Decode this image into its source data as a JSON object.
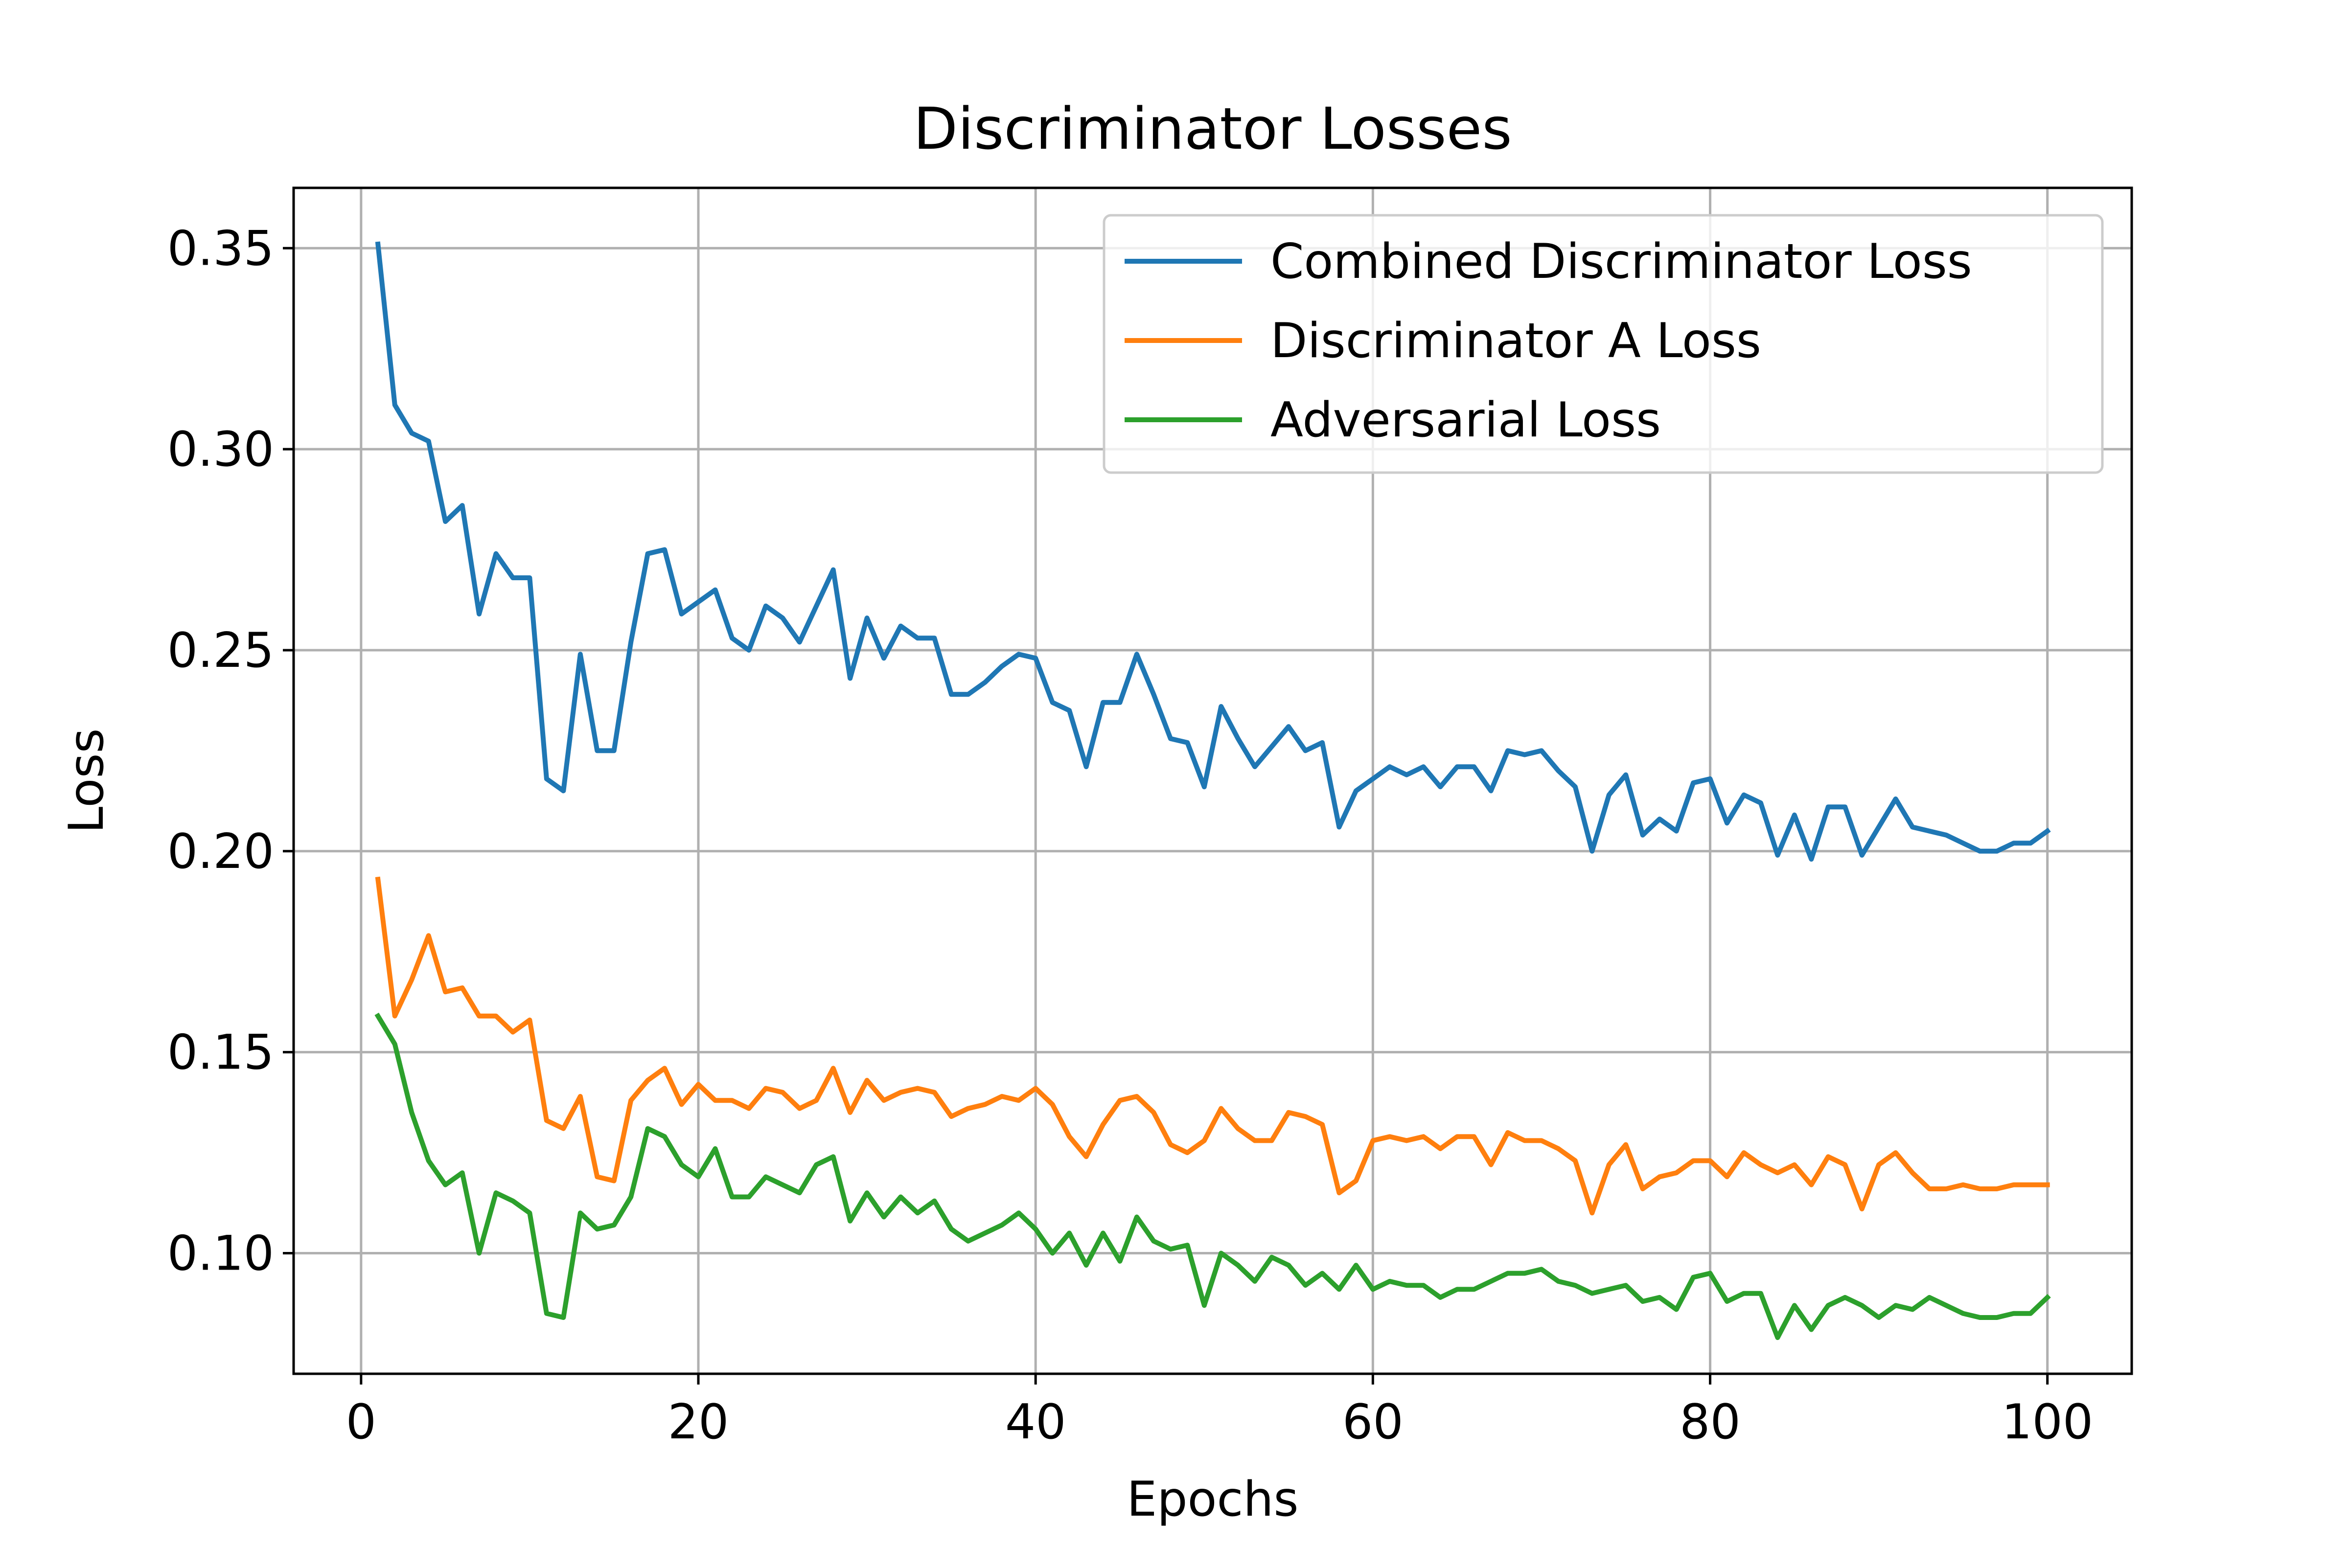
{
  "chart_data": {
    "type": "line",
    "title": "Discriminator Losses",
    "xlabel": "Epochs",
    "ylabel": "Loss",
    "xlim": [
      -4,
      105
    ],
    "ylim": [
      0.07,
      0.365
    ],
    "xticks": [
      0,
      20,
      40,
      60,
      80,
      100
    ],
    "xtick_labels": [
      "0",
      "20",
      "40",
      "60",
      "80",
      "100"
    ],
    "yticks": [
      0.1,
      0.15,
      0.2,
      0.25,
      0.3,
      0.35
    ],
    "ytick_labels": [
      "0.10",
      "0.15",
      "0.20",
      "0.25",
      "0.30",
      "0.35"
    ],
    "grid": true,
    "legend_position": "top-right",
    "x": [
      1,
      2,
      3,
      4,
      5,
      6,
      7,
      8,
      9,
      10,
      11,
      12,
      13,
      14,
      15,
      16,
      17,
      18,
      19,
      20,
      21,
      22,
      23,
      24,
      25,
      26,
      27,
      28,
      29,
      30,
      31,
      32,
      33,
      34,
      35,
      36,
      37,
      38,
      39,
      40,
      41,
      42,
      43,
      44,
      45,
      46,
      47,
      48,
      49,
      50,
      51,
      52,
      53,
      54,
      55,
      56,
      57,
      58,
      59,
      60,
      61,
      62,
      63,
      64,
      65,
      66,
      67,
      68,
      69,
      70,
      71,
      72,
      73,
      74,
      75,
      76,
      77,
      78,
      79,
      80,
      81,
      82,
      83,
      84,
      85,
      86,
      87,
      88,
      89,
      90,
      91,
      92,
      93,
      94,
      95,
      96,
      97,
      98,
      99,
      100
    ],
    "series": [
      {
        "name": "Combined Discriminator Loss",
        "color": "#1f77b4",
        "values": [
          0.351,
          0.311,
          0.304,
          0.302,
          0.282,
          0.286,
          0.259,
          0.274,
          0.268,
          0.268,
          0.218,
          0.215,
          0.249,
          0.225,
          0.225,
          0.252,
          0.274,
          0.275,
          0.259,
          0.262,
          0.265,
          0.253,
          0.25,
          0.261,
          0.258,
          0.252,
          0.261,
          0.27,
          0.243,
          0.258,
          0.248,
          0.256,
          0.253,
          0.253,
          0.239,
          0.239,
          0.242,
          0.246,
          0.249,
          0.248,
          0.237,
          0.235,
          0.221,
          0.237,
          0.237,
          0.249,
          0.239,
          0.228,
          0.227,
          0.216,
          0.236,
          0.228,
          0.221,
          0.226,
          0.231,
          0.225,
          0.227,
          0.206,
          0.215,
          0.218,
          0.221,
          0.219,
          0.221,
          0.216,
          0.221,
          0.221,
          0.215,
          0.225,
          0.224,
          0.225,
          0.22,
          0.216,
          0.2,
          0.214,
          0.219,
          0.204,
          0.208,
          0.205,
          0.217,
          0.218,
          0.207,
          0.214,
          0.212,
          0.199,
          0.209,
          0.198,
          0.211,
          0.211,
          0.199,
          0.206,
          0.213,
          0.206,
          0.205,
          0.204,
          0.202,
          0.2,
          0.2,
          0.202,
          0.202,
          0.205
        ]
      },
      {
        "name": "Discriminator A Loss",
        "color": "#ff7f0e",
        "values": [
          0.193,
          0.159,
          0.168,
          0.179,
          0.165,
          0.166,
          0.159,
          0.159,
          0.155,
          0.158,
          0.133,
          0.131,
          0.139,
          0.119,
          0.118,
          0.138,
          0.143,
          0.146,
          0.137,
          0.142,
          0.138,
          0.138,
          0.136,
          0.141,
          0.14,
          0.136,
          0.138,
          0.146,
          0.135,
          0.143,
          0.138,
          0.14,
          0.141,
          0.14,
          0.134,
          0.136,
          0.137,
          0.139,
          0.138,
          0.141,
          0.137,
          0.129,
          0.124,
          0.132,
          0.138,
          0.139,
          0.135,
          0.127,
          0.125,
          0.128,
          0.136,
          0.131,
          0.128,
          0.128,
          0.135,
          0.134,
          0.132,
          0.115,
          0.118,
          0.128,
          0.129,
          0.128,
          0.129,
          0.126,
          0.129,
          0.129,
          0.122,
          0.13,
          0.128,
          0.128,
          0.126,
          0.123,
          0.11,
          0.122,
          0.127,
          0.116,
          0.119,
          0.12,
          0.123,
          0.123,
          0.119,
          0.125,
          0.122,
          0.12,
          0.122,
          0.117,
          0.124,
          0.122,
          0.111,
          0.122,
          0.125,
          0.12,
          0.116,
          0.116,
          0.117,
          0.116,
          0.116,
          0.117,
          0.117,
          0.117
        ]
      },
      {
        "name": "Adversarial Loss",
        "color": "#2ca02c",
        "values": [
          0.159,
          0.152,
          0.135,
          0.123,
          0.117,
          0.12,
          0.1,
          0.115,
          0.113,
          0.11,
          0.085,
          0.084,
          0.11,
          0.106,
          0.107,
          0.114,
          0.131,
          0.129,
          0.122,
          0.119,
          0.126,
          0.114,
          0.114,
          0.119,
          0.117,
          0.115,
          0.122,
          0.124,
          0.108,
          0.115,
          0.109,
          0.114,
          0.11,
          0.113,
          0.106,
          0.103,
          0.105,
          0.107,
          0.11,
          0.106,
          0.1,
          0.105,
          0.097,
          0.105,
          0.098,
          0.109,
          0.103,
          0.101,
          0.102,
          0.087,
          0.1,
          0.097,
          0.093,
          0.099,
          0.097,
          0.092,
          0.095,
          0.091,
          0.097,
          0.091,
          0.093,
          0.092,
          0.092,
          0.089,
          0.091,
          0.091,
          0.093,
          0.095,
          0.095,
          0.096,
          0.093,
          0.092,
          0.09,
          0.091,
          0.092,
          0.088,
          0.089,
          0.086,
          0.094,
          0.095,
          0.088,
          0.09,
          0.09,
          0.079,
          0.087,
          0.081,
          0.087,
          0.089,
          0.087,
          0.084,
          0.087,
          0.086,
          0.089,
          0.087,
          0.085,
          0.084,
          0.084,
          0.085,
          0.085,
          0.089
        ]
      }
    ]
  }
}
